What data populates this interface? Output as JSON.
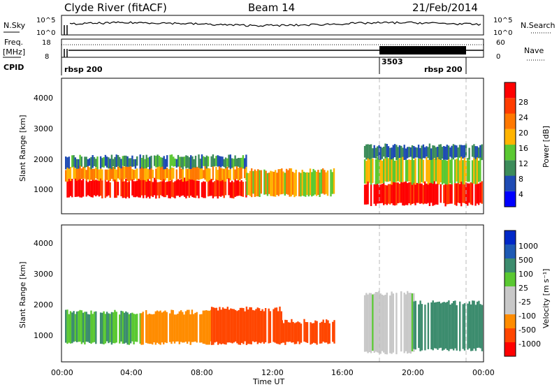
{
  "header": {
    "title": "Clyde River (fitACF)",
    "beam": "Beam 14",
    "date": "21/Feb/2014"
  },
  "noise_panel": {
    "left_label": "N.Sky",
    "right_label": "N.Search",
    "ticks": [
      "10^5",
      "10^0"
    ]
  },
  "freq_panel": {
    "left_label_1": "Freq.",
    "left_label_2": "[MHz]",
    "left_ticks": [
      "18",
      "8"
    ],
    "right_label": "Nave",
    "right_ticks": [
      "60",
      "0"
    ]
  },
  "cpid_panel": {
    "label": "CPID",
    "segments": [
      "rbsp 200",
      "3503",
      "rbsp 200"
    ]
  },
  "colors": {
    "power": [
      "#0000ff",
      "#1e4bb4",
      "#3c8c5a",
      "#5ac832",
      "#ffb400",
      "#ff7800",
      "#ff3c00",
      "#ff0000"
    ],
    "velocity": [
      "#ff0000",
      "#ff4600",
      "#ff8c00",
      "#c8c8c8",
      "#c8c8c8",
      "#5ac832",
      "#3c8c6e",
      "#1e5ab4",
      "#0028c8"
    ]
  },
  "chart_data": [
    {
      "type": "heatmap",
      "title": "Power",
      "ylabel": "Slant Range [km]",
      "ylim": [
        200,
        4600
      ],
      "xlim": [
        "00:00",
        "24:00"
      ],
      "yticks": [
        "1000",
        "2000",
        "3000",
        "4000"
      ],
      "colorbar": {
        "label": "Power [dB]",
        "ticks": [
          "4",
          "8",
          "12",
          "16",
          "20",
          "24",
          "28"
        ],
        "range": [
          0,
          32
        ]
      },
      "bands": [
        {
          "x": [
            0.2,
            10.5
          ],
          "y": [
            750,
            1300
          ],
          "value": 30
        },
        {
          "x": [
            0.2,
            10.5
          ],
          "y": [
            1300,
            1700
          ],
          "value": 20
        },
        {
          "x": [
            0.2,
            10.5
          ],
          "y": [
            1700,
            2050
          ],
          "value": 10
        },
        {
          "x": [
            10.5,
            15.5
          ],
          "y": [
            800,
            1600
          ],
          "value": 18
        },
        {
          "x": [
            17.2,
            23.9
          ],
          "y": [
            500,
            1200
          ],
          "value": 30
        },
        {
          "x": [
            17.2,
            23.9
          ],
          "y": [
            1200,
            2000
          ],
          "value": 16
        },
        {
          "x": [
            17.2,
            23.9
          ],
          "y": [
            2000,
            2400
          ],
          "value": 8
        }
      ]
    },
    {
      "type": "heatmap",
      "title": "Velocity",
      "ylabel": "Slant Range [km]",
      "xlabel": "Time UT",
      "ylim": [
        200,
        4600
      ],
      "xlim": [
        "00:00",
        "24:00"
      ],
      "xticks": [
        "00:00",
        "04:00",
        "08:00",
        "12:00",
        "16:00",
        "20:00",
        "00:00"
      ],
      "yticks": [
        "1000",
        "2000",
        "3000",
        "4000"
      ],
      "colorbar": {
        "label": "Velocity [m s⁻¹]",
        "ticks": [
          "1000",
          "500",
          "100",
          "25",
          "-25",
          "-100",
          "-500",
          "-1000"
        ]
      },
      "bands": [
        {
          "x": [
            0.2,
            4.5
          ],
          "y": [
            800,
            1800
          ],
          "value": 100
        },
        {
          "x": [
            4.5,
            8.5
          ],
          "y": [
            800,
            1800
          ],
          "value": -200
        },
        {
          "x": [
            8.5,
            12.5
          ],
          "y": [
            800,
            1900
          ],
          "value": -700
        },
        {
          "x": [
            12.5,
            15.5
          ],
          "y": [
            800,
            1500
          ],
          "value": -700
        },
        {
          "x": [
            17.2,
            20.0
          ],
          "y": [
            500,
            2400
          ],
          "value": 0
        },
        {
          "x": [
            20.0,
            23.9
          ],
          "y": [
            600,
            2100
          ],
          "value": 150
        }
      ]
    }
  ]
}
